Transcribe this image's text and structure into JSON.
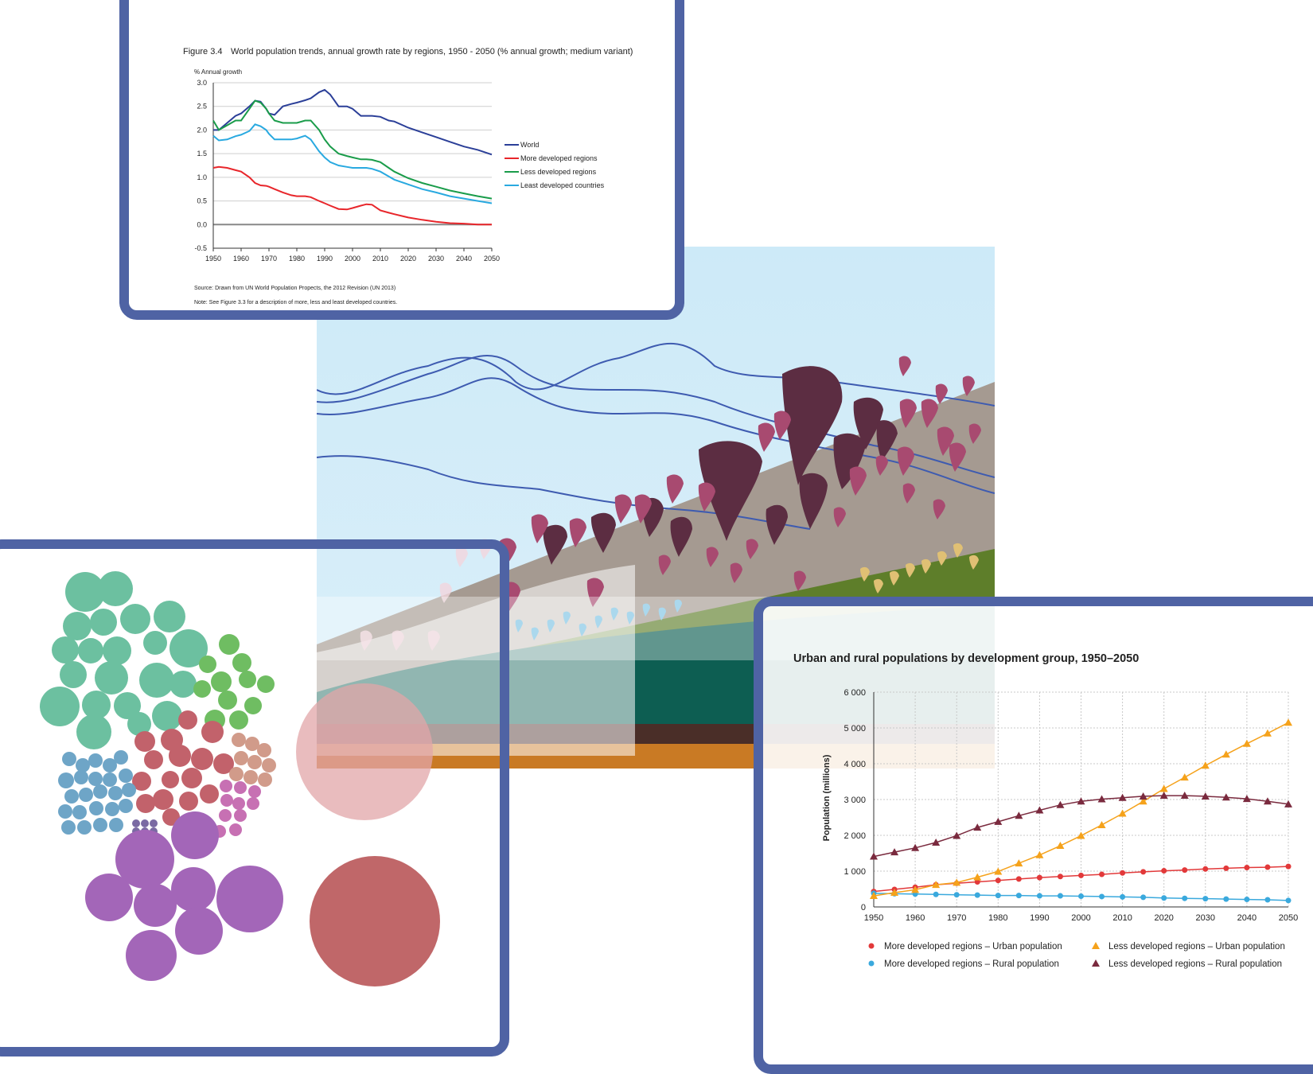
{
  "growth_chart": {
    "figure_number": "Figure 3.4",
    "title": "World population trends, annual growth rate by regions, 1950 - 2050  (% annual growth; medium variant)",
    "source": "Source: Drawn from UN World Population Propects, the 2012 Revision (UN 2013)",
    "note": "Note:  See Figure 3.3 for a description of more, less and least developed countries."
  },
  "urban_chart": {
    "title": "Urban and rural populations by development group, 1950–2050"
  },
  "colors": {
    "panel_border": "#4f63a4",
    "world": "#2b3f98",
    "more_developed": "#e8262b",
    "less_developed": "#1a9c4a",
    "least_developed": "#29a9e0",
    "urban_more": "#e2393a",
    "rural_more": "#3aa9dd",
    "urban_less": "#f5a21b",
    "rural_less": "#7a2a3e"
  },
  "chart_data": [
    {
      "type": "line",
      "title": "World population trends, annual growth rate by regions, 1950 - 2050  (% annual growth; medium variant)",
      "xlabel": "",
      "ylabel": "% Annual growth",
      "xlim": [
        1950,
        2050
      ],
      "ylim": [
        -0.5,
        3.0
      ],
      "x_ticks": [
        "1950",
        "1960",
        "1970",
        "1980",
        "1990",
        "2000",
        "2010",
        "2020",
        "2030",
        "2040",
        "2050"
      ],
      "y_ticks": [
        "3.0",
        "2.5",
        "2.0",
        "1.5",
        "1.0",
        "0.5",
        "0.0",
        "-0.5"
      ],
      "grid": "horizontal",
      "legend": "right",
      "x": [
        1950,
        1952,
        1955,
        1958,
        1960,
        1963,
        1965,
        1967,
        1969,
        1970,
        1972,
        1975,
        1978,
        1980,
        1983,
        1985,
        1988,
        1990,
        1992,
        1995,
        1998,
        2000,
        2003,
        2005,
        2007,
        2010,
        2013,
        2015,
        2020,
        2025,
        2030,
        2035,
        2040,
        2045,
        2050
      ],
      "series": [
        {
          "name": "World",
          "values": [
            2.0,
            2.0,
            2.15,
            2.3,
            2.35,
            2.5,
            2.62,
            2.6,
            2.45,
            2.35,
            2.32,
            2.5,
            2.55,
            2.58,
            2.63,
            2.67,
            2.8,
            2.85,
            2.75,
            2.5,
            2.5,
            2.45,
            2.3,
            2.3,
            2.3,
            2.28,
            2.2,
            2.18,
            2.05,
            1.95,
            1.85,
            1.75,
            1.65,
            1.58,
            1.48
          ]
        },
        {
          "name": "More developed regions",
          "values": [
            1.2,
            1.22,
            1.2,
            1.15,
            1.12,
            1.0,
            0.88,
            0.83,
            0.82,
            0.8,
            0.75,
            0.68,
            0.62,
            0.6,
            0.6,
            0.58,
            0.5,
            0.45,
            0.4,
            0.33,
            0.32,
            0.35,
            0.4,
            0.43,
            0.42,
            0.3,
            0.25,
            0.22,
            0.15,
            0.1,
            0.06,
            0.03,
            0.02,
            0.0,
            0.0
          ]
        },
        {
          "name": "Less developed regions",
          "values": [
            2.2,
            2.0,
            2.1,
            2.2,
            2.2,
            2.45,
            2.62,
            2.58,
            2.45,
            2.35,
            2.2,
            2.15,
            2.15,
            2.15,
            2.2,
            2.2,
            2.0,
            1.8,
            1.65,
            1.5,
            1.45,
            1.42,
            1.38,
            1.38,
            1.37,
            1.32,
            1.2,
            1.12,
            0.98,
            0.88,
            0.8,
            0.72,
            0.66,
            0.6,
            0.55
          ]
        },
        {
          "name": "Least developed countries",
          "values": [
            1.88,
            1.78,
            1.8,
            1.87,
            1.9,
            1.98,
            2.12,
            2.08,
            2.0,
            1.92,
            1.8,
            1.8,
            1.8,
            1.82,
            1.88,
            1.8,
            1.55,
            1.42,
            1.32,
            1.25,
            1.22,
            1.2,
            1.2,
            1.2,
            1.18,
            1.12,
            1.02,
            0.95,
            0.85,
            0.75,
            0.68,
            0.6,
            0.55,
            0.5,
            0.45
          ]
        }
      ]
    },
    {
      "type": "line",
      "title": "Urban and rural populations by development group, 1950–2050",
      "xlabel": "",
      "ylabel": "Population (millions)",
      "xlim": [
        1950,
        2050
      ],
      "ylim": [
        0,
        6000
      ],
      "x_ticks": [
        "1950",
        "1960",
        "1970",
        "1980",
        "1990",
        "2000",
        "2010",
        "2020",
        "2030",
        "2040",
        "2050"
      ],
      "y_ticks": [
        "6 000",
        "5 000",
        "4 000",
        "3 000",
        "2 000",
        "1 000",
        "0"
      ],
      "grid": "both",
      "legend": "bottom",
      "x": [
        1950,
        1955,
        1960,
        1965,
        1970,
        1975,
        1980,
        1985,
        1990,
        1995,
        2000,
        2005,
        2010,
        2015,
        2020,
        2025,
        2030,
        2035,
        2040,
        2045,
        2050
      ],
      "series": [
        {
          "name": "More developed regions – Urban population",
          "marker": "circle",
          "values": [
            430,
            490,
            550,
            620,
            660,
            700,
            740,
            780,
            820,
            850,
            880,
            910,
            950,
            980,
            1010,
            1030,
            1060,
            1080,
            1100,
            1110,
            1130
          ]
        },
        {
          "name": "More developed regions – Rural population",
          "marker": "circle",
          "values": [
            380,
            370,
            360,
            350,
            340,
            330,
            320,
            320,
            310,
            310,
            300,
            290,
            280,
            270,
            250,
            240,
            230,
            220,
            210,
            200,
            180
          ]
        },
        {
          "name": "Less developed regions – Urban population",
          "marker": "triangle",
          "values": [
            310,
            400,
            480,
            620,
            680,
            830,
            990,
            1220,
            1450,
            1710,
            1990,
            2290,
            2610,
            2950,
            3300,
            3620,
            3950,
            4260,
            4560,
            4850,
            5150
          ]
        },
        {
          "name": "Less developed regions – Rural population",
          "marker": "triangle",
          "values": [
            1410,
            1530,
            1650,
            1800,
            1990,
            2220,
            2380,
            2550,
            2700,
            2850,
            2950,
            3010,
            3050,
            3090,
            3110,
            3110,
            3090,
            3060,
            3020,
            2950,
            2870
          ]
        }
      ]
    }
  ],
  "bubble_chart": {
    "big_circle_labels": [
      "",
      "",
      "",
      "",
      ""
    ]
  }
}
